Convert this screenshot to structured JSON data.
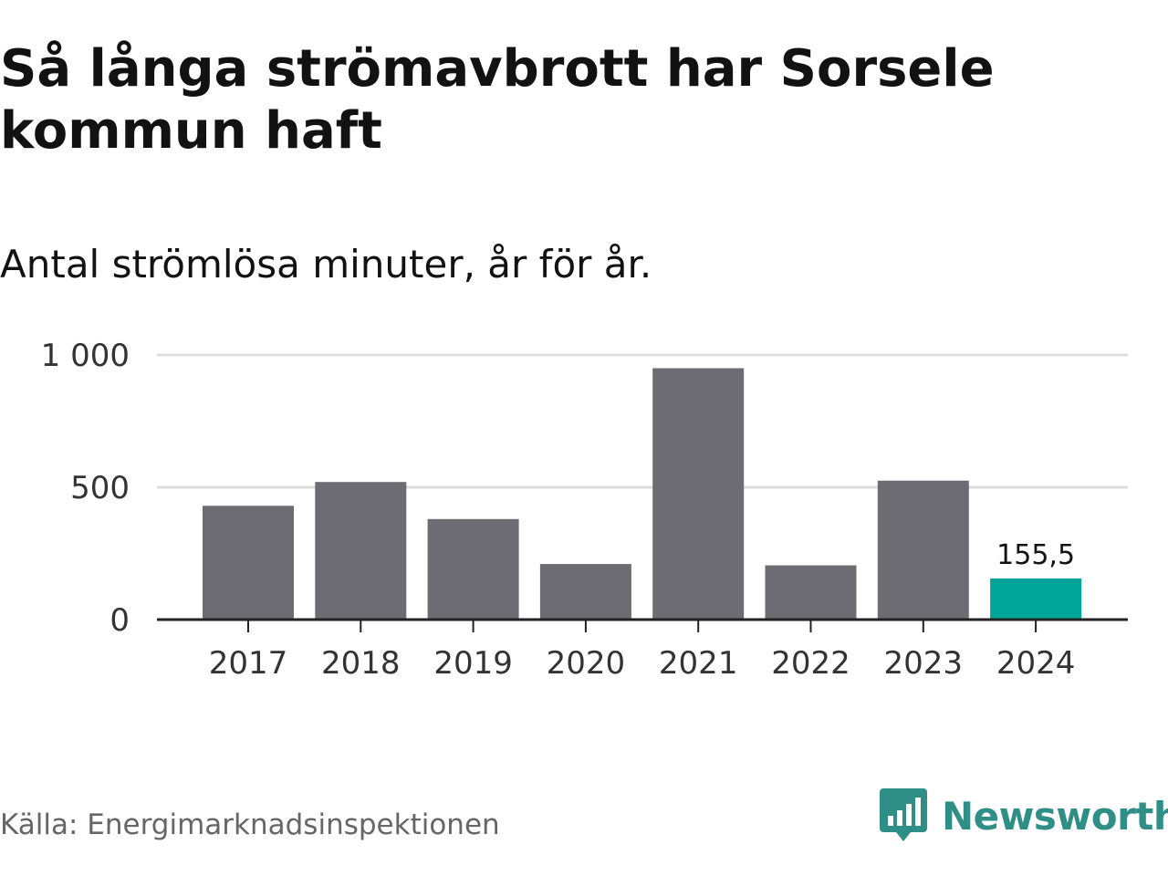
{
  "title": "Så långa strömavbrott har Sorsele kommun haft",
  "subtitle": "Antal strömlösa minuter, år för år.",
  "source": "Källa: Energimarknadsinspektionen",
  "brand": {
    "name": "Newsworthy",
    "icon": "newsworthy-logo-icon",
    "color": "#2f8f87"
  },
  "colors": {
    "bar": "#6d6c72",
    "highlight": "#00a59a",
    "grid": "#dddddd",
    "axis": "#222222"
  },
  "chart_data": {
    "type": "bar",
    "title": "Så långa strömavbrott har Sorsele kommun haft",
    "subtitle": "Antal strömlösa minuter, år för år.",
    "xlabel": "",
    "ylabel": "",
    "categories": [
      "2017",
      "2018",
      "2019",
      "2020",
      "2021",
      "2022",
      "2023",
      "2024"
    ],
    "values": [
      430,
      520,
      380,
      210,
      950,
      205,
      525,
      155.5
    ],
    "highlight_index": 7,
    "data_labels": [
      {
        "index": 7,
        "text": "155,5"
      }
    ],
    "ylim": [
      0,
      1000
    ],
    "yticks": [
      {
        "value": 0,
        "label": "0"
      },
      {
        "value": 500,
        "label": "500"
      },
      {
        "value": 1000,
        "label": "1 000"
      }
    ],
    "grid": true,
    "legend": "none"
  }
}
